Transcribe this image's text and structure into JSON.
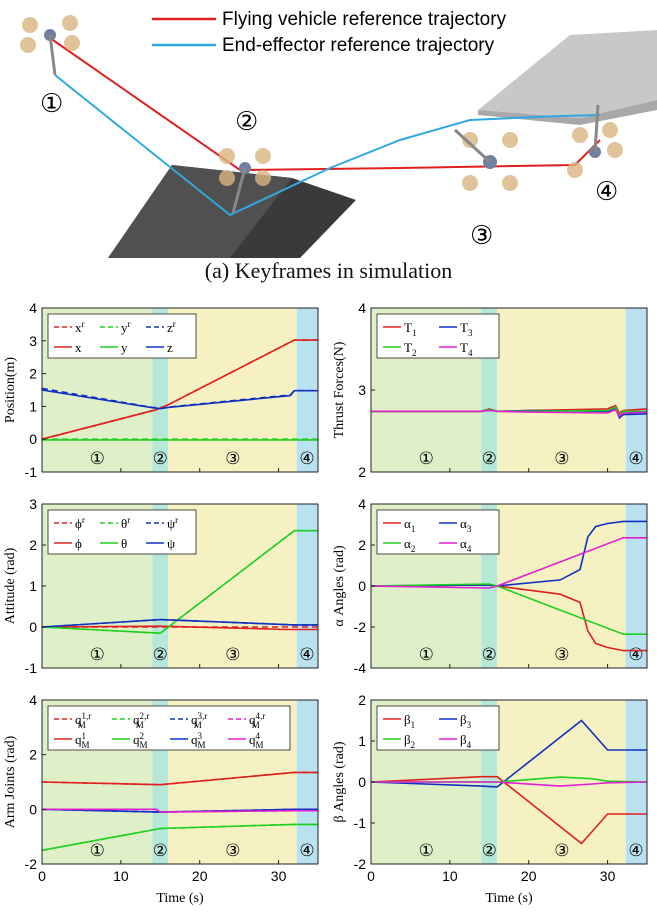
{
  "figure": {
    "sim": {
      "legend": [
        {
          "label": "Flying vehicle reference trajectory",
          "color": "#e02020"
        },
        {
          "label": "End-effector reference trajectory",
          "color": "#30a8e0"
        }
      ],
      "keyframe_labels": [
        "①",
        "②",
        "③",
        "④"
      ]
    },
    "caption": "(a) Keyframes in simulation",
    "phase_labels": [
      "①",
      "②",
      "③",
      "④"
    ],
    "phases": [
      {
        "x": [
          0,
          14
        ],
        "color": "#dff0c8"
      },
      {
        "x": [
          14,
          16
        ],
        "color": "#b6e8d8"
      },
      {
        "x": [
          16,
          32.3
        ],
        "color": "#f5f1c2"
      },
      {
        "x": [
          32.3,
          35
        ],
        "color": "#b8e2ef"
      }
    ],
    "xlabel": "Time (s)"
  },
  "chart_data": [
    {
      "type": "line",
      "ylabel": "Position(m)",
      "xlim": [
        0,
        35
      ],
      "ylim": [
        -1,
        4
      ],
      "yticks": [
        "-1",
        "0",
        "1",
        "2",
        "3",
        "4"
      ],
      "xticks": [
        "0",
        "10",
        "20",
        "30"
      ],
      "legend": [
        "x",
        "y",
        "z"
      ],
      "legend_ref": [
        "x",
        "y",
        "z"
      ],
      "legend_ref_sup": "r",
      "legend_cols": 3,
      "series": [
        {
          "name": "x",
          "ref": true,
          "color": "#e02020",
          "x": [
            0,
            14.5,
            16,
            32,
            35
          ],
          "y": [
            0,
            0.9,
            1.05,
            3.02,
            3.02
          ]
        },
        {
          "name": "y",
          "ref": true,
          "color": "#20d020",
          "x": [
            0,
            35
          ],
          "y": [
            0,
            0
          ]
        },
        {
          "name": "z",
          "ref": true,
          "color": "#1030c0",
          "x": [
            0,
            14,
            15,
            16,
            31.5,
            32,
            35
          ],
          "y": [
            1.55,
            0.97,
            0.95,
            0.98,
            1.35,
            1.48,
            1.48
          ]
        },
        {
          "name": "x",
          "color": "#e02020",
          "x": [
            0,
            14.5,
            16,
            32,
            35
          ],
          "y": [
            0,
            0.9,
            1.05,
            3.02,
            3.02
          ]
        },
        {
          "name": "y",
          "color": "#20d020",
          "x": [
            0,
            35
          ],
          "y": [
            -0.02,
            -0.02
          ]
        },
        {
          "name": "z",
          "color": "#1030c0",
          "x": [
            0,
            14,
            15,
            16,
            31.5,
            32,
            35
          ],
          "y": [
            1.5,
            0.96,
            0.93,
            0.97,
            1.33,
            1.48,
            1.48
          ]
        }
      ]
    },
    {
      "type": "line",
      "ylabel": "Thrust Forces(N)",
      "xlim": [
        0,
        35
      ],
      "ylim": [
        2,
        4
      ],
      "yticks": [
        "2",
        "3",
        "4"
      ],
      "xticks": [
        "0",
        "10",
        "20",
        "30"
      ],
      "legend": [
        "T",
        "T",
        "T",
        "T"
      ],
      "legend_sub": [
        "1",
        "3",
        "2",
        "4"
      ],
      "legend_cols": 2,
      "series": [
        {
          "name": "T1",
          "color": "#e02020",
          "x": [
            0,
            14,
            15,
            16,
            20,
            30,
            31,
            31.5,
            32,
            35
          ],
          "y": [
            2.74,
            2.74,
            2.77,
            2.74,
            2.75,
            2.77,
            2.81,
            2.72,
            2.75,
            2.77
          ]
        },
        {
          "name": "T3",
          "color": "#1030c0",
          "x": [
            0,
            14,
            15,
            16,
            20,
            30,
            31,
            31.5,
            32,
            35
          ],
          "y": [
            2.74,
            2.74,
            2.76,
            2.74,
            2.75,
            2.74,
            2.78,
            2.66,
            2.7,
            2.71
          ]
        },
        {
          "name": "T2",
          "color": "#20d020",
          "x": [
            0,
            14,
            15,
            16,
            20,
            30,
            31,
            31.5,
            32,
            35
          ],
          "y": [
            2.74,
            2.74,
            2.76,
            2.74,
            2.74,
            2.75,
            2.79,
            2.69,
            2.74,
            2.74
          ]
        },
        {
          "name": "T4",
          "color": "#e020d0",
          "x": [
            0,
            14,
            15,
            16,
            20,
            30,
            31,
            31.5,
            32,
            35
          ],
          "y": [
            2.74,
            2.74,
            2.75,
            2.74,
            2.73,
            2.72,
            2.76,
            2.68,
            2.72,
            2.73
          ]
        }
      ]
    },
    {
      "type": "line",
      "ylabel": "Attitude (rad)",
      "xlim": [
        0,
        35
      ],
      "ylim": [
        -1,
        3
      ],
      "yticks": [
        "-1",
        "0",
        "1",
        "2",
        "3"
      ],
      "xticks": [
        "0",
        "10",
        "20",
        "30"
      ],
      "legend": [
        "ϕ",
        "θ",
        "ψ"
      ],
      "legend_ref": [
        "ϕ",
        "θ",
        "ψ"
      ],
      "legend_ref_sup": "r",
      "legend_cols": 3,
      "series": [
        {
          "name": "phi",
          "ref": true,
          "color": "#e02020",
          "x": [
            0,
            35
          ],
          "y": [
            0,
            0
          ]
        },
        {
          "name": "theta",
          "ref": true,
          "color": "#20d020",
          "x": [
            0,
            15,
            32,
            35
          ],
          "y": [
            0,
            -0.15,
            2.35,
            2.35
          ]
        },
        {
          "name": "psi",
          "ref": true,
          "color": "#1030c0",
          "x": [
            0,
            15,
            32,
            35
          ],
          "y": [
            0,
            0.18,
            0.05,
            0.05
          ]
        },
        {
          "name": "phi",
          "color": "#e02020",
          "x": [
            0,
            15,
            25,
            31,
            35
          ],
          "y": [
            0,
            0.02,
            -0.03,
            -0.06,
            -0.06
          ]
        },
        {
          "name": "theta",
          "color": "#20d020",
          "x": [
            0,
            15,
            32,
            35
          ],
          "y": [
            0,
            -0.15,
            2.35,
            2.35
          ]
        },
        {
          "name": "psi",
          "color": "#1030c0",
          "x": [
            0,
            15,
            32,
            35
          ],
          "y": [
            0,
            0.18,
            0.05,
            0.05
          ]
        }
      ]
    },
    {
      "type": "line",
      "ylabel": "α Angles (rad)",
      "xlim": [
        0,
        35
      ],
      "ylim": [
        -4,
        4
      ],
      "yticks": [
        "-4",
        "-2",
        "0",
        "2",
        "4"
      ],
      "xticks": [
        "0",
        "10",
        "20",
        "30"
      ],
      "legend": [
        "α",
        "α",
        "α",
        "α"
      ],
      "legend_sub": [
        "1",
        "3",
        "2",
        "4"
      ],
      "legend_cols": 2,
      "series": [
        {
          "name": "a1",
          "color": "#e02020",
          "x": [
            0,
            15,
            16,
            24,
            26.5,
            27.5,
            28.5,
            30,
            32,
            35
          ],
          "y": [
            0,
            0.05,
            0,
            -0.4,
            -0.8,
            -2.2,
            -2.8,
            -3.0,
            -3.15,
            -3.15
          ]
        },
        {
          "name": "a3",
          "color": "#1030c0",
          "x": [
            0,
            15,
            16,
            24,
            26.5,
            27.5,
            28.5,
            30,
            32,
            35
          ],
          "y": [
            0,
            0.05,
            0,
            0.3,
            0.8,
            2.4,
            2.9,
            3.05,
            3.15,
            3.15
          ]
        },
        {
          "name": "a2",
          "color": "#20d020",
          "x": [
            0,
            15,
            16,
            32,
            35
          ],
          "y": [
            0,
            0.1,
            0,
            -2.35,
            -2.35
          ]
        },
        {
          "name": "a4",
          "color": "#e020d0",
          "x": [
            0,
            15,
            16,
            32,
            35
          ],
          "y": [
            0,
            -0.1,
            0,
            2.35,
            2.35
          ]
        }
      ]
    },
    {
      "type": "line",
      "ylabel": "Arm Joints (rad)",
      "xlim": [
        0,
        35
      ],
      "ylim": [
        -2,
        4
      ],
      "yticks": [
        "-2",
        "0",
        "2",
        "4"
      ],
      "xticks": [
        "0",
        "10",
        "20",
        "30"
      ],
      "legend": [
        "q",
        "q",
        "q",
        "q"
      ],
      "legend_sup": [
        "1",
        "2",
        "3",
        "4"
      ],
      "legend_sub": "M",
      "legend_ref_sup": "r",
      "legend_cols": 4,
      "series": [
        {
          "name": "q1",
          "ref": true,
          "color": "#e02020",
          "x": [
            0,
            15,
            32,
            35
          ],
          "y": [
            1.0,
            0.9,
            1.35,
            1.35
          ]
        },
        {
          "name": "q2",
          "ref": true,
          "color": "#20d020",
          "x": [
            0,
            15,
            32,
            35
          ],
          "y": [
            -1.5,
            -0.7,
            -0.55,
            -0.55
          ]
        },
        {
          "name": "q3",
          "ref": true,
          "color": "#1030c0",
          "x": [
            0,
            15,
            32,
            35
          ],
          "y": [
            0,
            -0.1,
            0,
            0
          ]
        },
        {
          "name": "q4",
          "ref": true,
          "color": "#e020d0",
          "x": [
            0,
            14.5,
            15,
            32,
            35
          ],
          "y": [
            0,
            0,
            -0.1,
            -0.05,
            -0.05
          ]
        },
        {
          "name": "q1",
          "color": "#e02020",
          "x": [
            0,
            15,
            32,
            35
          ],
          "y": [
            1.0,
            0.9,
            1.35,
            1.35
          ]
        },
        {
          "name": "q2",
          "color": "#20d020",
          "x": [
            0,
            15,
            32,
            35
          ],
          "y": [
            -1.5,
            -0.7,
            -0.55,
            -0.55
          ]
        },
        {
          "name": "q3",
          "color": "#1030c0",
          "x": [
            0,
            15,
            32,
            35
          ],
          "y": [
            0,
            -0.1,
            0,
            0
          ]
        },
        {
          "name": "q4",
          "color": "#e020d0",
          "x": [
            0,
            14.5,
            15,
            32,
            35
          ],
          "y": [
            0,
            0,
            -0.1,
            -0.05,
            -0.05
          ]
        }
      ]
    },
    {
      "type": "line",
      "ylabel": "β Angles (rad)",
      "xlim": [
        0,
        35
      ],
      "ylim": [
        -2,
        2
      ],
      "yticks": [
        "-2",
        "-1",
        "0",
        "1",
        "2"
      ],
      "xticks": [
        "0",
        "10",
        "20",
        "30"
      ],
      "legend": [
        "β",
        "β",
        "β",
        "β"
      ],
      "legend_sub": [
        "1",
        "3",
        "2",
        "4"
      ],
      "legend_cols": 2,
      "series": [
        {
          "name": "b1",
          "color": "#e02020",
          "x": [
            0,
            14,
            16,
            26.7,
            30,
            35
          ],
          "y": [
            0,
            0.13,
            0.13,
            -1.5,
            -0.78,
            -0.78
          ]
        },
        {
          "name": "b3",
          "color": "#1030c0",
          "x": [
            0,
            14,
            16,
            26.7,
            30,
            35
          ],
          "y": [
            0,
            -0.1,
            -0.12,
            1.5,
            0.78,
            0.78
          ]
        },
        {
          "name": "b2",
          "color": "#20d020",
          "x": [
            0,
            16,
            24,
            28,
            30,
            35
          ],
          "y": [
            0,
            0,
            0.12,
            0.08,
            0.02,
            0
          ]
        },
        {
          "name": "b4",
          "color": "#e020d0",
          "x": [
            0,
            16,
            24,
            28,
            30,
            35
          ],
          "y": [
            0,
            0,
            -0.1,
            -0.05,
            -0.02,
            0
          ]
        }
      ]
    }
  ]
}
